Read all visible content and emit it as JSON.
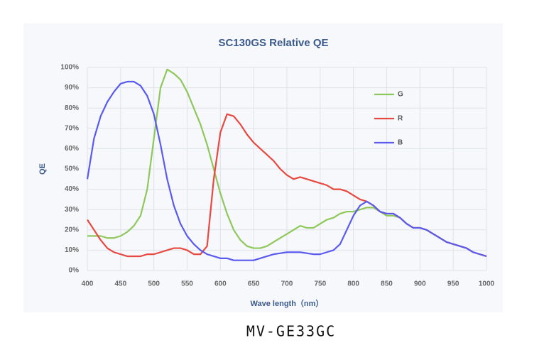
{
  "chart_data": {
    "type": "line",
    "title": "SC130GS Relative QE",
    "xlabel": "Wave length（nm）",
    "ylabel": "QE",
    "x": [
      400,
      410,
      420,
      430,
      440,
      450,
      460,
      470,
      480,
      490,
      500,
      510,
      520,
      530,
      540,
      550,
      560,
      570,
      580,
      590,
      600,
      610,
      620,
      630,
      640,
      650,
      660,
      670,
      680,
      690,
      700,
      710,
      720,
      730,
      740,
      750,
      760,
      770,
      780,
      790,
      800,
      810,
      820,
      830,
      840,
      850,
      860,
      870,
      880,
      890,
      900,
      910,
      920,
      930,
      940,
      950,
      960,
      970,
      980,
      990,
      1000
    ],
    "series": [
      {
        "name": "G",
        "color": "#8fc85a",
        "values": [
          17,
          17,
          17,
          16,
          16,
          17,
          19,
          22,
          27,
          40,
          65,
          90,
          99,
          97,
          94,
          88,
          80,
          72,
          62,
          50,
          38,
          28,
          20,
          15,
          12,
          11,
          11,
          12,
          14,
          16,
          18,
          20,
          22,
          21,
          21,
          23,
          25,
          26,
          28,
          29,
          29,
          30,
          31,
          31,
          29,
          27,
          27,
          26,
          23,
          21,
          21,
          20,
          18,
          16,
          14,
          13,
          12,
          11,
          9,
          8,
          7
        ]
      },
      {
        "name": "R",
        "color": "#e8483f",
        "values": [
          25,
          20,
          15,
          11,
          9,
          8,
          7,
          7,
          7,
          8,
          8,
          9,
          10,
          11,
          11,
          10,
          8,
          8,
          12,
          45,
          68,
          77,
          76,
          72,
          67,
          63,
          60,
          57,
          54,
          50,
          47,
          45,
          46,
          45,
          44,
          43,
          42,
          40,
          40,
          39,
          37,
          35,
          34,
          32,
          29,
          28,
          28,
          26,
          23,
          21,
          21,
          20,
          18,
          16,
          14,
          13,
          12,
          11,
          9,
          8,
          7
        ]
      },
      {
        "name": "B",
        "color": "#5a5af0",
        "values": [
          45,
          65,
          76,
          83,
          88,
          92,
          93,
          93,
          91,
          86,
          77,
          62,
          45,
          32,
          23,
          17,
          13,
          10,
          8,
          7,
          6,
          6,
          5,
          5,
          5,
          5,
          6,
          7,
          8,
          8.5,
          9,
          9,
          9,
          8.5,
          8,
          8,
          9,
          10,
          13,
          20,
          27,
          32,
          34,
          32,
          29,
          28,
          28,
          26,
          23,
          21,
          21,
          20,
          18,
          16,
          14,
          13,
          12,
          11,
          9,
          8,
          7
        ]
      }
    ],
    "xlim": [
      400,
      1000
    ],
    "xticks": [
      400,
      450,
      500,
      550,
      600,
      650,
      700,
      750,
      800,
      850,
      900,
      950,
      1000
    ],
    "ylim": [
      0,
      100
    ],
    "yticks": [
      {
        "value": 0,
        "label": "0%"
      },
      {
        "value": 10,
        "label": "10%"
      },
      {
        "value": 20,
        "label": "20%"
      },
      {
        "value": 30,
        "label": "30%"
      },
      {
        "value": 40,
        "label": "40%"
      },
      {
        "value": 50,
        "label": "50%"
      },
      {
        "value": 60,
        "label": "60%"
      },
      {
        "value": 70,
        "label": "70%"
      },
      {
        "value": 80,
        "label": "80%"
      },
      {
        "value": 90,
        "label": "90%"
      },
      {
        "value": 100,
        "label": "100%"
      }
    ],
    "grid": true,
    "legend": "upper right"
  },
  "caption": "MV-GE33GC"
}
